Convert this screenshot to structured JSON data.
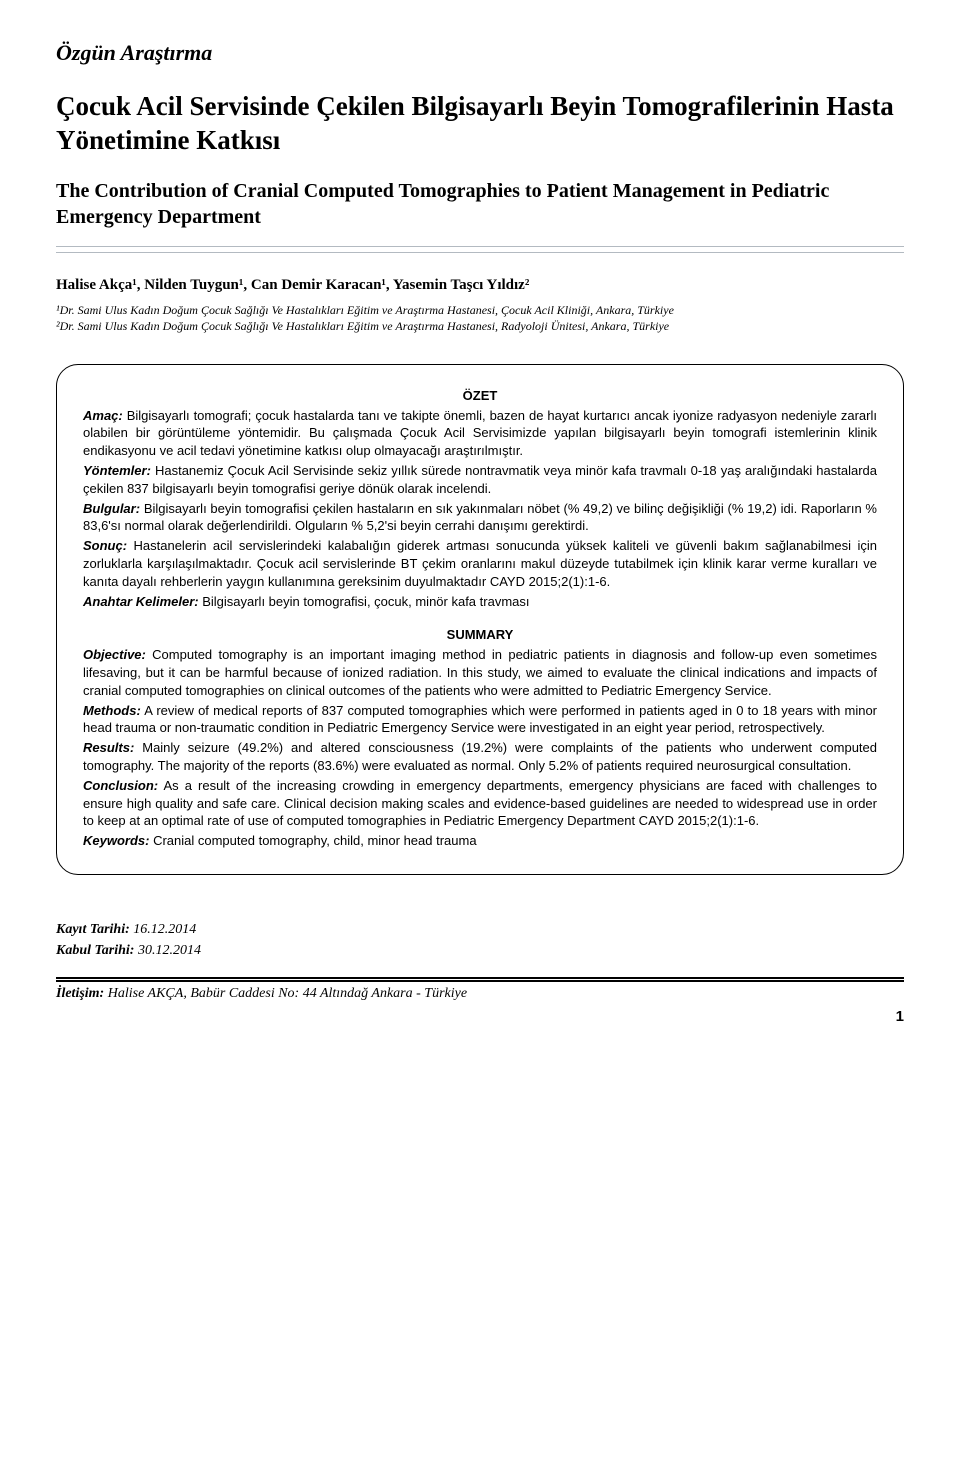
{
  "typography": {
    "serif_family": "Times New Roman",
    "sans_family": "Arial",
    "article_type_fontsize": 22,
    "title_tr_fontsize": 27,
    "title_en_fontsize": 20,
    "authors_fontsize": 15,
    "affiliations_fontsize": 12,
    "abstract_fontsize": 13,
    "footer_fontsize": 14
  },
  "colors": {
    "text": "#000000",
    "background": "#ffffff",
    "rule": "#b3bac1",
    "box_border": "#000000"
  },
  "header": {
    "article_type": "Özgün Araştırma",
    "title_tr": "Çocuk Acil Servisinde Çekilen Bilgisayarlı Beyin Tomografilerinin Hasta Yönetimine Katkısı",
    "title_en": "The Contribution of Cranial Computed Tomographies to Patient Management in Pediatric Emergency Department"
  },
  "authors_line": "Halise Akça¹, Nilden Tuygun¹, Can Demir Karacan¹, Yasemin Taşcı Yıldız²",
  "affiliations": {
    "a1": "¹Dr. Sami Ulus Kadın Doğum Çocuk Sağlığı Ve Hastalıkları Eğitim ve Araştırma Hastanesi, Çocuk Acil Kliniği, Ankara, Türkiye",
    "a2": "²Dr. Sami Ulus Kadın Doğum Çocuk Sağlığı Ve Hastalıkları Eğitim ve Araştırma Hastanesi, Radyoloji Ünitesi, Ankara, Türkiye"
  },
  "ozet": {
    "heading": "ÖZET",
    "amac_label": "Amaç:",
    "amac_text": " Bilgisayarlı tomografi; çocuk hastalarda tanı ve takipte önemli, bazen de hayat kurtarıcı ancak iyonize radyasyon nedeniyle zararlı olabilen bir görüntüleme yöntemidir. Bu çalışmada Çocuk Acil Servisimizde yapılan bilgisayarlı beyin tomografi istemlerinin klinik endikasyonu ve acil tedavi yönetimine katkısı olup olmayacağı araştırılmıştır.",
    "yontemler_label": "Yöntemler:",
    "yontemler_text": " Hastanemiz Çocuk Acil Servisinde sekiz yıllık sürede nontravmatik veya minör kafa travmalı 0-18 yaş aralığındaki hastalarda çekilen 837 bilgisayarlı beyin tomografisi geriye dönük olarak incelendi.",
    "bulgular_label": "Bulgular:",
    "bulgular_text": " Bilgisayarlı beyin tomografisi çekilen hastaların en sık yakınmaları nöbet (% 49,2) ve bilinç değişikliği (% 19,2) idi. Raporların % 83,6'sı normal olarak değerlendirildi. Olguların % 5,2'si beyin cerrahi danışımı gerektirdi.",
    "sonuc_label": "Sonuç:",
    "sonuc_text": " Hastanelerin acil servislerindeki kalabalığın giderek artması sonucunda yüksek kaliteli ve güvenli bakım sağlanabilmesi için zorluklarla karşılaşılmaktadır. Çocuk acil servislerinde BT çekim oranlarını makul düzeyde tutabilmek için klinik karar verme kuralları ve kanıta dayalı rehberlerin yaygın kullanımına gereksinim duyulmaktadır CAYD 2015;2(1):1-6.",
    "anahtar_label": "Anahtar Kelimeler:",
    "anahtar_text": " Bilgisayarlı beyin tomografisi, çocuk, minör kafa travması"
  },
  "summary": {
    "heading": "SUMMARY",
    "objective_label": "Objective:",
    "objective_text": " Computed tomography is an important imaging method in pediatric patients in diagnosis and follow-up even sometimes lifesaving, but it can be harmful because of ionized radiation. In this study, we aimed to evaluate the clinical indications and impacts of cranial computed tomographies on clinical outcomes of the patients who were admitted to Pediatric Emergency Service.",
    "methods_label": "Methods:",
    "methods_text": " A review of medical reports of 837 computed tomographies which were performed in patients aged in 0 to 18 years with minor head trauma or non-traumatic condition in Pediatric Emergency Service were investigated in an eight year period, retrospectively.",
    "results_label": "Results:",
    "results_text": " Mainly seizure (49.2%) and altered consciousness (19.2%) were complaints of the patients who underwent computed tomography. The majority of the reports (83.6%) were evaluated as normal. Only 5.2% of patients required neurosurgical consultation.",
    "conclusion_label": "Conclusion:",
    "conclusion_text": " As a result of the increasing crowding in emergency departments, emergency physicians are faced with challenges to ensure high quality and safe care. Clinical decision making scales and evidence-based guidelines are needed to widespread use in order to keep at an optimal rate of use of computed tomographies in Pediatric Emergency Department CAYD 2015;2(1):1-6.",
    "keywords_label": "Keywords:",
    "keywords_text": " Cranial computed tomography, child, minor head trauma"
  },
  "footer": {
    "kayit_label": "Kayıt Tarihi:",
    "kayit_value": " 16.12.2014",
    "kabul_label": "Kabul Tarihi:",
    "kabul_value": " 30.12.2014",
    "iletisim_label": "İletişim:",
    "iletisim_value": " Halise AKÇA, Babür Caddesi No: 44 Altındağ Ankara - Türkiye",
    "page_number": "1"
  }
}
